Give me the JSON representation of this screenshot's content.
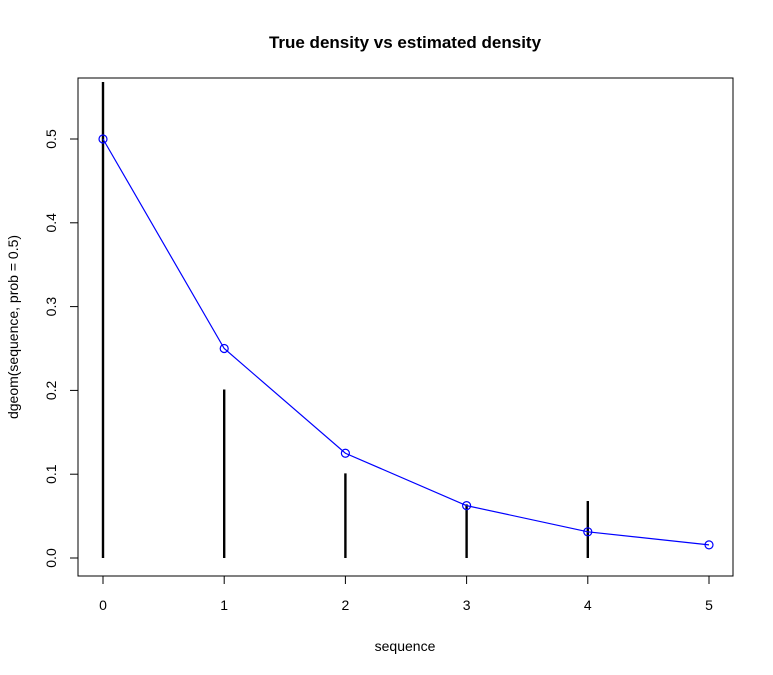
{
  "chart_data": {
    "type": "line",
    "title": "True density vs estimated density",
    "xlabel": "sequence",
    "ylabel": "dgeom(sequence, prob = 0.5)",
    "xlim": [
      0,
      5
    ],
    "ylim": [
      0,
      0.5
    ],
    "x_ticks": [
      "0",
      "1",
      "2",
      "3",
      "4",
      "5"
    ],
    "y_ticks": [
      "0.0",
      "0.1",
      "0.2",
      "0.3",
      "0.4",
      "0.5"
    ],
    "grid": false,
    "legend": "none",
    "series": [
      {
        "type": "line",
        "marker": "open-circle",
        "color": "#0000ff",
        "x": [
          0,
          1,
          2,
          3,
          4,
          5
        ],
        "values": [
          0.5,
          0.25,
          0.125,
          0.0625,
          0.03125,
          0.015625
        ]
      },
      {
        "type": "vertical-lines",
        "color": "#000000",
        "x": [
          0,
          1,
          2,
          3,
          4
        ],
        "values": [
          0.568,
          0.201,
          0.101,
          0.064,
          0.068
        ]
      }
    ]
  }
}
